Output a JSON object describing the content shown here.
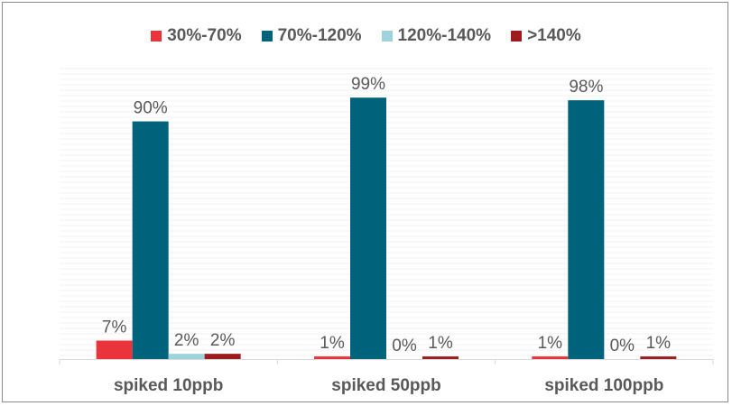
{
  "chart_data": {
    "type": "bar",
    "categories": [
      "spiked 10ppb",
      "spiked 50ppb",
      "spiked 100ppb"
    ],
    "series": [
      {
        "name": "30%-70%",
        "color": "#e8343a",
        "values": [
          7,
          1,
          1
        ],
        "labels": [
          "7%",
          "1%",
          "1%"
        ]
      },
      {
        "name": "70%-120%",
        "color": "#00637c",
        "values": [
          90,
          99,
          98
        ],
        "labels": [
          "90%",
          "99%",
          "98%"
        ]
      },
      {
        "name": "120%-140%",
        "color": "#9ed3dc",
        "values": [
          2,
          0,
          0
        ],
        "labels": [
          "2%",
          "0%",
          "0%"
        ]
      },
      {
        "name": ">140%",
        "color": "#9c1c1f",
        "values": [
          2,
          1,
          1
        ],
        "labels": [
          "2%",
          "1%",
          "1%"
        ]
      }
    ],
    "ylim": [
      0,
      110
    ],
    "legend_position": "top",
    "grid": true
  }
}
